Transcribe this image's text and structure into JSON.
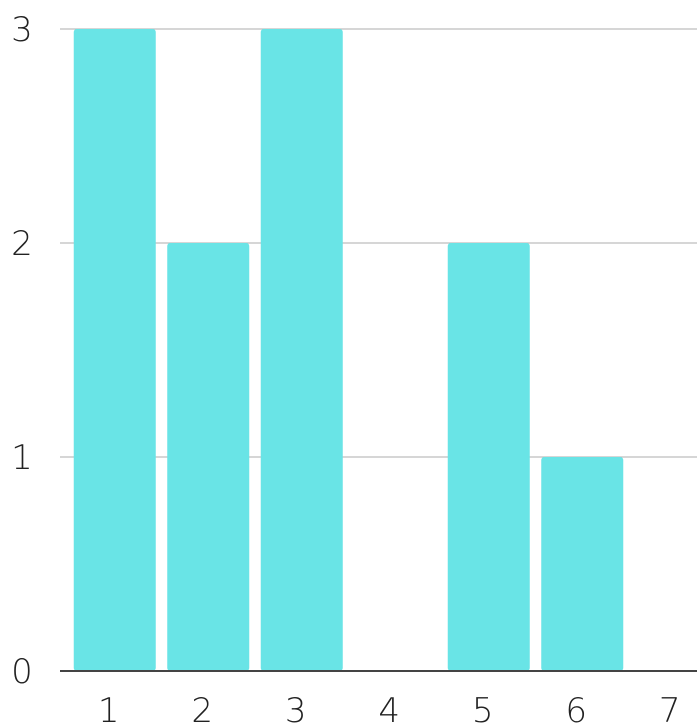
{
  "chart_data": {
    "type": "bar",
    "title": "",
    "xlabel": "",
    "ylabel": "",
    "categories": [
      "1",
      "2",
      "3",
      "4",
      "5",
      "6",
      "7"
    ],
    "values": [
      3,
      2,
      3,
      0,
      2,
      1,
      0
    ],
    "ylim": [
      0,
      3
    ],
    "yticks": [
      "0",
      "1",
      "2",
      "3"
    ],
    "grid": true,
    "legend": "none",
    "colors": {
      "bar": "#69e4e6",
      "grid": "#bdbdbd",
      "axis": "#444444",
      "text": "#222222"
    }
  }
}
